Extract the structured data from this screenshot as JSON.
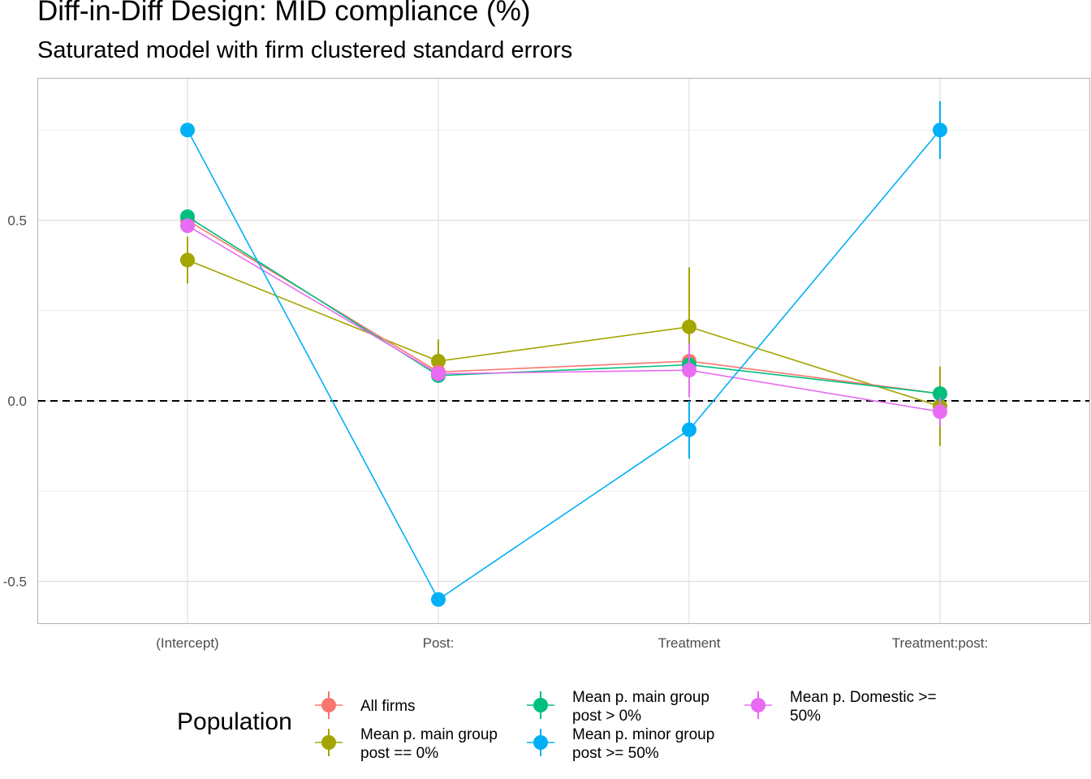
{
  "title": "Diff-in-Diff Design: MID compliance (%)",
  "subtitle": "Saturated model with firm clustered standard errors",
  "legend_title": "Population",
  "chart_data": {
    "type": "line",
    "title": "Diff-in-Diff Design: MID compliance (%)",
    "subtitle": "Saturated model with firm clustered standard errors",
    "xlabel": "",
    "ylabel": "",
    "categories": [
      "(Intercept)",
      "Post:",
      "Treatment",
      "Treatment:post:"
    ],
    "y_ticks": [
      -0.5,
      0.0,
      0.5
    ],
    "y_tick_labels": [
      "-0.5",
      "0.0",
      "0.5"
    ],
    "ylim": [
      -0.62,
      0.89
    ],
    "reference_line": 0,
    "grid": true,
    "legend_position": "bottom",
    "series": [
      {
        "name": "All firms",
        "color": "#F8766D",
        "values": [
          0.5,
          0.08,
          0.11,
          0.02
        ],
        "lower": [
          0.47,
          0.06,
          0.08,
          0.0
        ],
        "upper": [
          0.53,
          0.1,
          0.14,
          0.04
        ]
      },
      {
        "name": "Mean p. main group\npost == 0%",
        "color": "#A3A500",
        "values": [
          0.39,
          0.11,
          0.205,
          -0.015
        ],
        "lower": [
          0.325,
          0.05,
          0.04,
          -0.125
        ],
        "upper": [
          0.455,
          0.17,
          0.37,
          0.095
        ]
      },
      {
        "name": "Mean p. main group\npost > 0%",
        "color": "#00BF7D",
        "values": [
          0.51,
          0.07,
          0.1,
          0.02
        ],
        "lower": [
          0.49,
          0.055,
          0.08,
          0.005
        ],
        "upper": [
          0.53,
          0.085,
          0.12,
          0.035
        ]
      },
      {
        "name": "Mean p. minor group\npost >= 50%",
        "color": "#00B0F6",
        "values": [
          0.75,
          -0.55,
          -0.08,
          0.75
        ],
        "lower": [
          0.74,
          -0.56,
          -0.16,
          0.67
        ],
        "upper": [
          0.76,
          -0.54,
          0.0,
          0.83
        ]
      },
      {
        "name": "Mean p. Domestic >=\n50%",
        "color": "#E76BF3",
        "values": [
          0.485,
          0.075,
          0.085,
          -0.03
        ],
        "lower": [
          0.465,
          0.055,
          0.01,
          -0.07
        ],
        "upper": [
          0.505,
          0.095,
          0.16,
          0.01
        ]
      }
    ]
  }
}
